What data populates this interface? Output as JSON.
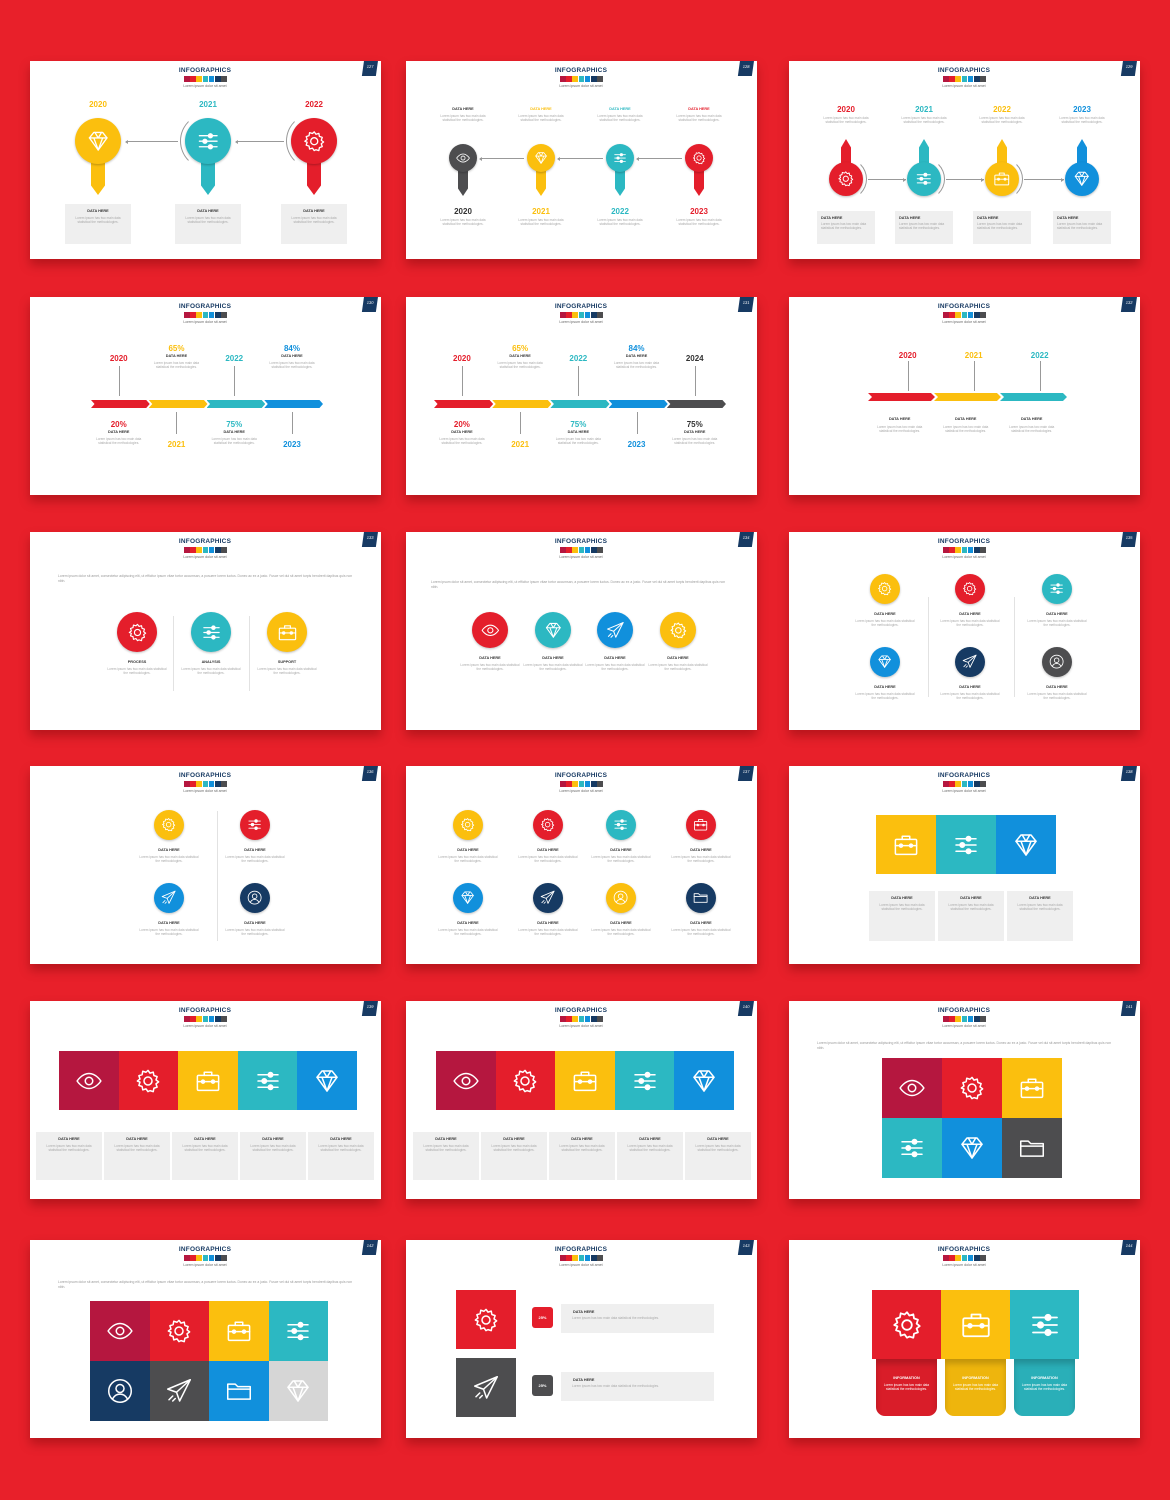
{
  "page": {
    "background": "#e8202a"
  },
  "colors": {
    "red": "#e41e2b",
    "yellow": "#fbbf0e",
    "teal": "#2cb8c2",
    "blue": "#1190dc",
    "navy": "#163a63",
    "gray": "#4d4d4f",
    "crimson": "#b5173f",
    "light": "#d6d6d6"
  },
  "header": {
    "title": "INFOGRAPHICS",
    "subtitle": "Lorem ipsum dolor sit amet",
    "swatches": [
      "crimson",
      "red",
      "yellow",
      "teal",
      "blue",
      "navy",
      "gray"
    ]
  },
  "lorem": {
    "body": "Lorem ipsum has two main data statistical the methodologies.",
    "intro": "Lorem ipsum dolor sit amet, consectetur adipiscing elit, ut efficitur ipsum vitae tortor accumsan, a posuere lorem luctus. Donec ac ex a justo. Fusce vel dui sit amet turpis hendrerit dapibus quis non nibh."
  },
  "slides": [
    {
      "number": "127",
      "type": "pins-down",
      "items": [
        {
          "year": "2020",
          "color": "yellow",
          "icon": "diamond",
          "label": "DATA HERE"
        },
        {
          "year": "2021",
          "color": "teal",
          "icon": "sliders",
          "label": "DATA HERE"
        },
        {
          "year": "2022",
          "color": "red",
          "icon": "gear",
          "label": "DATA HERE"
        }
      ]
    },
    {
      "number": "128",
      "type": "pins-down-small",
      "items": [
        {
          "year": "2020",
          "color": "gray",
          "icon": "eye",
          "label": "DATA HERE"
        },
        {
          "year": "2021",
          "color": "yellow",
          "icon": "diamond",
          "label": "DATA HERE"
        },
        {
          "year": "2022",
          "color": "teal",
          "icon": "sliders",
          "label": "DATA HERE"
        },
        {
          "year": "2023",
          "color": "red",
          "icon": "gear",
          "label": "DATA HERE"
        }
      ]
    },
    {
      "number": "129",
      "type": "pins-up",
      "items": [
        {
          "year": "2020",
          "color": "red",
          "icon": "gear",
          "label": "DATA HERE"
        },
        {
          "year": "2021",
          "color": "teal",
          "icon": "sliders",
          "label": "DATA HERE"
        },
        {
          "year": "2022",
          "color": "yellow",
          "icon": "briefcase",
          "label": "DATA HERE"
        },
        {
          "year": "2023",
          "color": "blue",
          "icon": "diamond",
          "label": "DATA HERE"
        }
      ]
    },
    {
      "number": "130",
      "type": "bar",
      "items": [
        {
          "year": "2020",
          "stat": "20%",
          "color": "red",
          "label": "DATA HERE"
        },
        {
          "year": "2021",
          "stat": "65%",
          "color": "yellow",
          "label": "DATA HERE"
        },
        {
          "year": "2022",
          "stat": "75%",
          "color": "teal",
          "label": "DATA HERE"
        },
        {
          "year": "2023",
          "stat": "84%",
          "color": "blue",
          "label": "DATA HERE"
        }
      ]
    },
    {
      "number": "131",
      "type": "bar",
      "items": [
        {
          "year": "2020",
          "stat": "20%",
          "color": "red",
          "label": "DATA HERE"
        },
        {
          "year": "2021",
          "stat": "65%",
          "color": "yellow",
          "label": "DATA HERE"
        },
        {
          "year": "2022",
          "stat": "75%",
          "color": "teal",
          "label": "DATA HERE"
        },
        {
          "year": "2023",
          "stat": "84%",
          "color": "blue",
          "label": "DATA HERE"
        },
        {
          "year": "2024",
          "stat": "75%",
          "color": "gray",
          "label": "DATA HERE"
        }
      ]
    },
    {
      "number": "132",
      "type": "bar-simple",
      "items": [
        {
          "year": "2020",
          "color": "red",
          "label": "DATA HERE"
        },
        {
          "year": "2021",
          "color": "yellow",
          "label": "DATA HERE"
        },
        {
          "year": "2022",
          "color": "teal",
          "label": "DATA HERE"
        }
      ]
    },
    {
      "number": "133",
      "type": "circles-3",
      "items": [
        {
          "label": "PROCESS",
          "color": "red",
          "icon": "gear"
        },
        {
          "label": "ANALYSIS",
          "color": "teal",
          "icon": "sliders"
        },
        {
          "label": "SUPPORT",
          "color": "yellow",
          "icon": "briefcase"
        }
      ]
    },
    {
      "number": "134",
      "type": "circles-4",
      "items": [
        {
          "label": "DATA HERE",
          "color": "red",
          "icon": "eye"
        },
        {
          "label": "DATA HERE",
          "color": "teal",
          "icon": "diamond"
        },
        {
          "label": "DATA HERE",
          "color": "blue",
          "icon": "plane"
        },
        {
          "label": "DATA HERE",
          "color": "yellow",
          "icon": "gear"
        }
      ]
    },
    {
      "number": "135",
      "type": "circles-3x2",
      "items": [
        {
          "label": "DATA HERE",
          "color": "yellow",
          "icon": "gear"
        },
        {
          "label": "DATA HERE",
          "color": "red",
          "icon": "gear"
        },
        {
          "label": "DATA HERE",
          "color": "teal",
          "icon": "sliders"
        },
        {
          "label": "DATA HERE",
          "color": "blue",
          "icon": "diamond"
        },
        {
          "label": "DATA HERE",
          "color": "navy",
          "icon": "plane"
        },
        {
          "label": "DATA HERE",
          "color": "gray",
          "icon": "user"
        }
      ]
    },
    {
      "number": "136",
      "type": "circles-2x2",
      "items": [
        {
          "label": "DATA HERE",
          "color": "yellow",
          "icon": "gear"
        },
        {
          "label": "DATA HERE",
          "color": "red",
          "icon": "sliders"
        },
        {
          "label": "DATA HERE",
          "color": "blue",
          "icon": "plane"
        },
        {
          "label": "DATA HERE",
          "color": "navy",
          "icon": "user"
        }
      ]
    },
    {
      "number": "137",
      "type": "circles-4x2",
      "items": [
        {
          "label": "DATA HERE",
          "color": "yellow",
          "icon": "gear"
        },
        {
          "label": "DATA HERE",
          "color": "red",
          "icon": "gear"
        },
        {
          "label": "DATA HERE",
          "color": "teal",
          "icon": "sliders"
        },
        {
          "label": "DATA HERE",
          "color": "red",
          "icon": "briefcase"
        },
        {
          "label": "DATA HERE",
          "color": "blue",
          "icon": "diamond"
        },
        {
          "label": "DATA HERE",
          "color": "navy",
          "icon": "plane"
        },
        {
          "label": "DATA HERE",
          "color": "yellow",
          "icon": "user"
        },
        {
          "label": "DATA HERE",
          "color": "navy",
          "icon": "folder"
        }
      ]
    },
    {
      "number": "138",
      "type": "squares-row-3",
      "items": [
        {
          "label": "DATA HERE",
          "color": "yellow",
          "icon": "briefcase"
        },
        {
          "label": "DATA HERE",
          "color": "teal",
          "icon": "sliders"
        },
        {
          "label": "DATA HERE",
          "color": "blue",
          "icon": "diamond"
        }
      ]
    },
    {
      "number": "139",
      "type": "squares-row-5",
      "items": [
        {
          "label": "DATA HERE",
          "color": "crimson",
          "icon": "eye"
        },
        {
          "label": "DATA HERE",
          "color": "red",
          "icon": "gear"
        },
        {
          "label": "DATA HERE",
          "color": "yellow",
          "icon": "briefcase"
        },
        {
          "label": "DATA HERE",
          "color": "teal",
          "icon": "sliders"
        },
        {
          "label": "DATA HERE",
          "color": "blue",
          "icon": "diamond"
        }
      ]
    },
    {
      "number": "140",
      "type": "squares-row-5",
      "items": [
        {
          "label": "DATA HERE",
          "color": "crimson",
          "icon": "eye"
        },
        {
          "label": "DATA HERE",
          "color": "red",
          "icon": "gear"
        },
        {
          "label": "DATA HERE",
          "color": "yellow",
          "icon": "briefcase"
        },
        {
          "label": "DATA HERE",
          "color": "teal",
          "icon": "sliders"
        },
        {
          "label": "DATA HERE",
          "color": "blue",
          "icon": "diamond"
        }
      ]
    },
    {
      "number": "141",
      "type": "grid-3x2",
      "items": [
        {
          "color": "crimson",
          "icon": "eye"
        },
        {
          "color": "red",
          "icon": "gear"
        },
        {
          "color": "yellow",
          "icon": "briefcase"
        },
        {
          "color": "teal",
          "icon": "sliders"
        },
        {
          "color": "blue",
          "icon": "diamond"
        },
        {
          "color": "gray",
          "icon": "folder"
        }
      ]
    },
    {
      "number": "142",
      "type": "grid-4x2",
      "items": [
        {
          "color": "crimson",
          "icon": "eye"
        },
        {
          "color": "red",
          "icon": "gear"
        },
        {
          "color": "yellow",
          "icon": "briefcase"
        },
        {
          "color": "teal",
          "icon": "sliders"
        },
        {
          "color": "navy",
          "icon": "user"
        },
        {
          "color": "gray",
          "icon": "plane"
        },
        {
          "color": "blue",
          "icon": "folder"
        },
        {
          "color": "light",
          "icon": "diamond"
        }
      ]
    },
    {
      "number": "143",
      "type": "percent-rows",
      "items": [
        {
          "color": "red",
          "icon": "gear",
          "pct": "25%",
          "label": "DATA HERE"
        },
        {
          "color": "gray",
          "icon": "plane",
          "pct": "25%",
          "label": "DATA HERE"
        }
      ]
    },
    {
      "number": "144",
      "type": "tabs-3",
      "items": [
        {
          "color": "red",
          "icon": "gear",
          "label": "INFORMATION"
        },
        {
          "color": "yellow",
          "icon": "briefcase",
          "label": "INFORMATION"
        },
        {
          "color": "teal",
          "icon": "sliders",
          "label": "INFORMATION"
        }
      ]
    }
  ]
}
